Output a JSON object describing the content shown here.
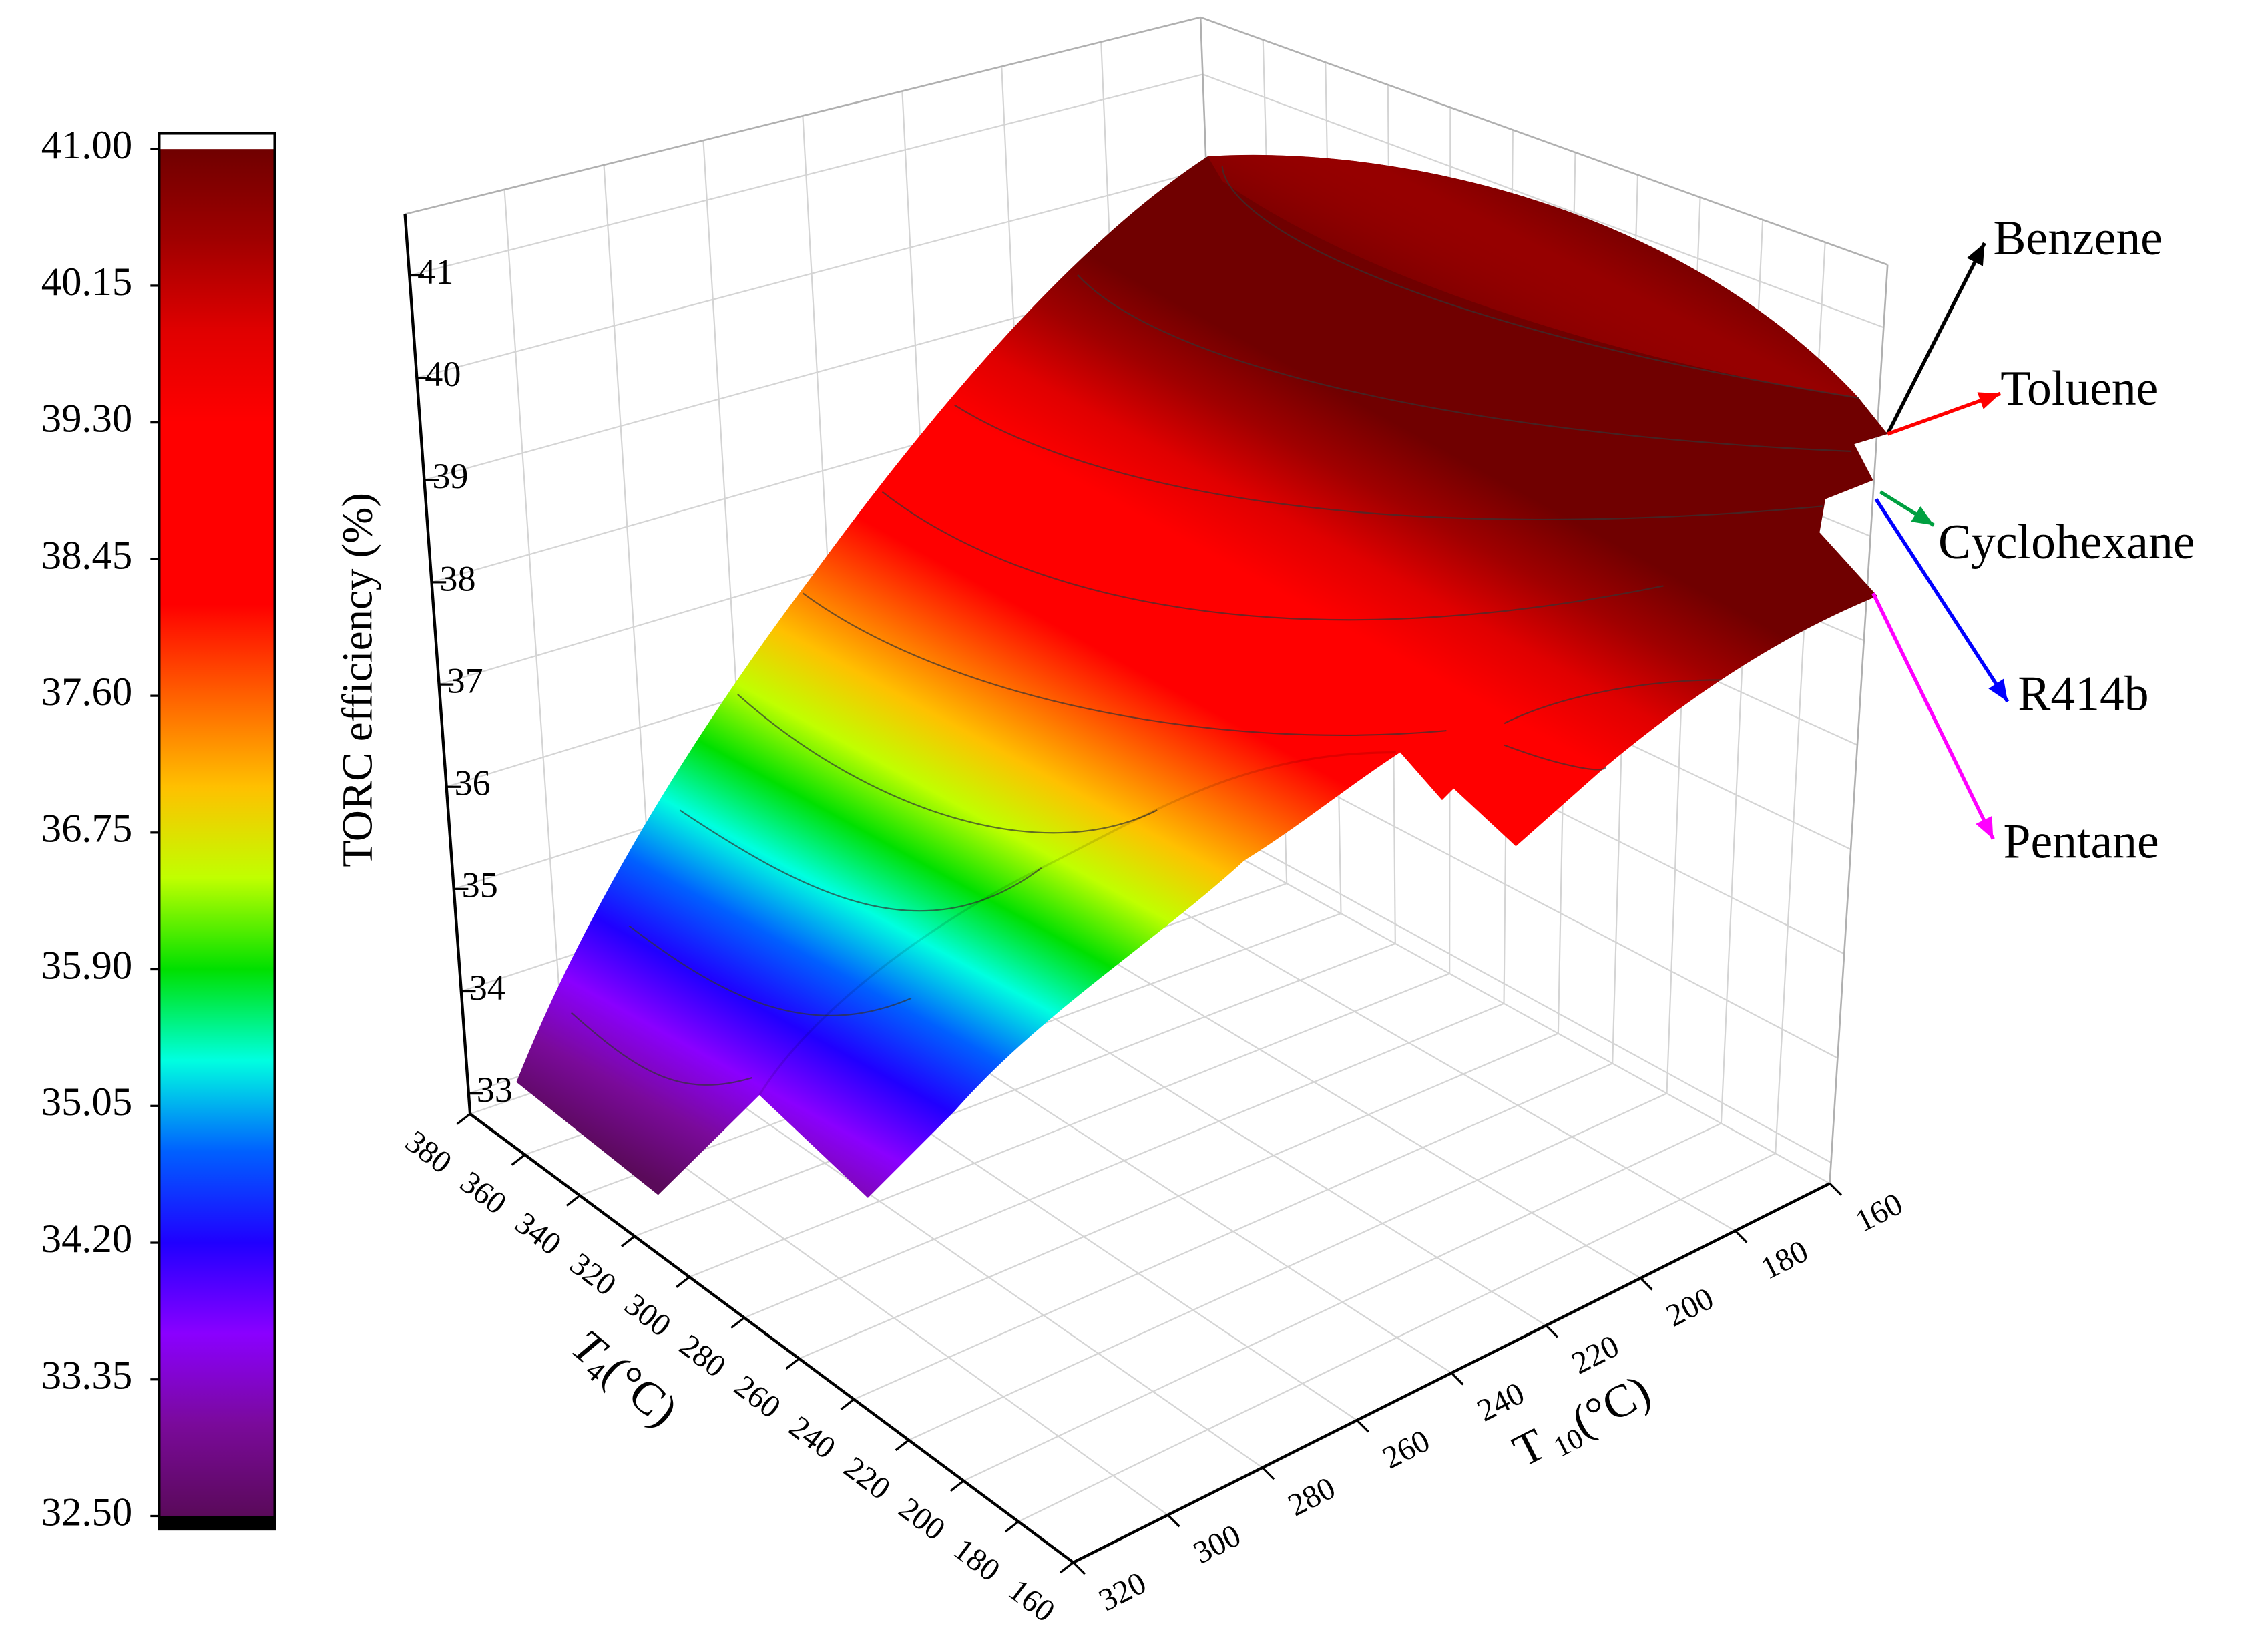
{
  "chart_data": {
    "type": "surface3d",
    "zlabel": "TORC efficiency (%)",
    "xlabel": "T",
    "xlabel_sub": "4",
    "xlabel_unit": "(°C)",
    "ylabel": "T",
    "ylabel_sub": "10",
    "ylabel_unit": "(°C)",
    "xlim": [
      160,
      380
    ],
    "xticks": [
      160,
      180,
      200,
      220,
      240,
      260,
      280,
      300,
      320,
      340,
      360,
      380
    ],
    "ylim": [
      160,
      320
    ],
    "yticks": [
      160,
      180,
      200,
      220,
      240,
      260,
      280,
      300,
      320
    ],
    "zlim": [
      32.8,
      41.6
    ],
    "zticks": [
      33,
      34,
      35,
      36,
      37,
      38,
      39,
      40,
      41
    ],
    "grid": true,
    "series": [
      {
        "name": "Benzene",
        "color": "#000000"
      },
      {
        "name": "Toluene",
        "color": "#ff0000"
      },
      {
        "name": "Cyclohexane",
        "color": "#00a040"
      },
      {
        "name": "R414b",
        "color": "#0000ff"
      },
      {
        "name": "Pentane",
        "color": "#ff00ff"
      }
    ],
    "colorbar": {
      "ticks": [
        {
          "value": 32.5,
          "label": "32.50"
        },
        {
          "value": 33.35,
          "label": "33.35"
        },
        {
          "value": 34.2,
          "label": "34.20"
        },
        {
          "value": 35.05,
          "label": "35.05"
        },
        {
          "value": 35.9,
          "label": "35.90"
        },
        {
          "value": 36.75,
          "label": "36.75"
        },
        {
          "value": 37.6,
          "label": "37.60"
        },
        {
          "value": 38.45,
          "label": "38.45"
        },
        {
          "value": 39.3,
          "label": "39.30"
        },
        {
          "value": 40.15,
          "label": "40.15"
        },
        {
          "value": 41,
          "label": "41.00"
        }
      ],
      "colors": [
        "#5a0a5a",
        "#7a0a9a",
        "#8a00ff",
        "#2000ff",
        "#0060ff",
        "#00ffe0",
        "#00e000",
        "#c0ff00",
        "#ffc000",
        "#ff6000",
        "#ff0000",
        "#ff0000",
        "#ff0000",
        "#e00000",
        "#a00000",
        "#700000"
      ]
    }
  }
}
